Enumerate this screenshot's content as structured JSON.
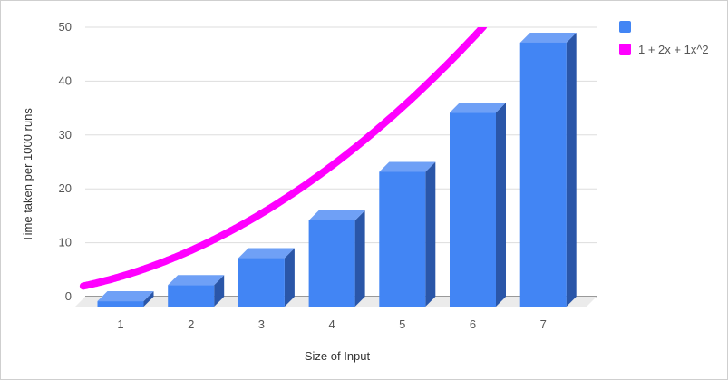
{
  "chart_data": {
    "type": "bar",
    "categories": [
      "1",
      "2",
      "3",
      "4",
      "5",
      "6",
      "7"
    ],
    "series": [
      {
        "kind": "bar",
        "values": [
          1,
          4,
          9,
          16,
          25,
          36,
          49
        ],
        "color": "#4285f4"
      },
      {
        "kind": "line",
        "name": "1 + 2x + 1x^2",
        "formula": "1 + 2x + 1x^2",
        "coefficients": [
          1,
          2,
          1
        ],
        "color": "#ff00ff"
      }
    ],
    "xlabel": "Size of Input",
    "ylabel": "Time taken per 1000 runs",
    "yticks": [
      0,
      10,
      20,
      30,
      40,
      50
    ],
    "ylim": [
      0,
      50
    ],
    "grid": true,
    "style": "3d",
    "legend_position": "right"
  }
}
